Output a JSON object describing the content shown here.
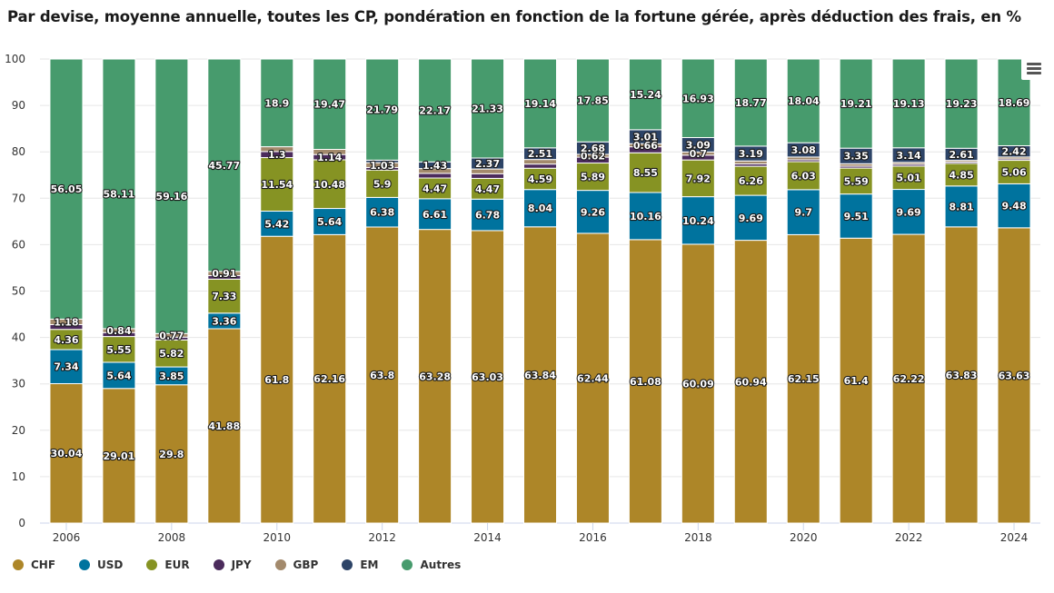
{
  "chart_data": {
    "type": "bar",
    "stacked": true,
    "title": "Par devise, moyenne annuelle, toutes les CP, pondération en fonction de la fortune gérée, après déduction des frais, en %",
    "xlabel": "",
    "ylabel": "",
    "ylim": [
      0,
      100
    ],
    "yticks": [
      0,
      10,
      20,
      30,
      40,
      50,
      60,
      70,
      80,
      90,
      100
    ],
    "grid": true,
    "legend_position": "bottom-left",
    "categories": [
      "2006",
      "2007",
      "2008",
      "2009",
      "2010",
      "2011",
      "2012",
      "2013",
      "2014",
      "2015",
      "2016",
      "2017",
      "2018",
      "2019",
      "2020",
      "2021",
      "2022",
      "2023",
      "2024"
    ],
    "xtick_labels": [
      "2006",
      "",
      "2008",
      "",
      "2010",
      "",
      "2012",
      "",
      "2014",
      "",
      "2016",
      "",
      "2018",
      "",
      "2020",
      "",
      "2022",
      "",
      "2024"
    ],
    "series": [
      {
        "name": "CHF",
        "color": "#AD8628",
        "values": [
          30.04,
          29.01,
          29.8,
          41.88,
          61.8,
          62.16,
          63.8,
          63.28,
          63.03,
          63.84,
          62.44,
          61.08,
          60.09,
          60.94,
          62.15,
          61.4,
          62.22,
          63.83,
          63.63
        ],
        "labeled": [
          1,
          1,
          1,
          1,
          1,
          1,
          1,
          1,
          1,
          1,
          1,
          1,
          1,
          1,
          1,
          1,
          1,
          1,
          1
        ]
      },
      {
        "name": "USD",
        "color": "#00739E",
        "values": [
          7.34,
          5.64,
          3.85,
          3.36,
          5.42,
          5.64,
          6.38,
          6.61,
          6.78,
          8.04,
          9.26,
          10.16,
          10.24,
          9.69,
          9.7,
          9.51,
          9.69,
          8.81,
          9.48
        ],
        "labeled": [
          1,
          1,
          1,
          1,
          1,
          1,
          1,
          1,
          1,
          1,
          1,
          1,
          1,
          1,
          1,
          1,
          1,
          1,
          1
        ]
      },
      {
        "name": "EUR",
        "color": "#869323",
        "values": [
          4.36,
          5.55,
          5.82,
          7.33,
          11.54,
          10.48,
          5.9,
          4.47,
          4.47,
          4.59,
          5.89,
          8.55,
          7.92,
          6.26,
          6.03,
          5.59,
          5.01,
          4.85,
          5.06
        ],
        "labeled": [
          1,
          1,
          1,
          1,
          1,
          1,
          1,
          1,
          1,
          1,
          1,
          1,
          1,
          1,
          1,
          1,
          1,
          1,
          1
        ]
      },
      {
        "name": "JPY",
        "color": "#4B2B5C",
        "values": [
          1.03,
          0.85,
          0.6,
          0.75,
          1.3,
          1.14,
          0.55,
          1.0,
          1.0,
          0.9,
          1.26,
          1.3,
          1.03,
          0.5,
          0.4,
          0.4,
          0.4,
          0.3,
          0.3
        ],
        "labeled": [
          0,
          0,
          0,
          0,
          1,
          1,
          0,
          0,
          0,
          0,
          0,
          0,
          0,
          0,
          0,
          0,
          0,
          0,
          0
        ]
      },
      {
        "name": "GBP",
        "color": "#A38A6C",
        "values": [
          1.18,
          0.84,
          0.77,
          0.91,
          1.04,
          1.11,
          1.03,
          1.04,
          1.02,
          0.98,
          0.62,
          0.66,
          0.7,
          0.65,
          0.6,
          0.54,
          0.41,
          0.37,
          0.42
        ],
        "labeled": [
          1,
          1,
          1,
          1,
          0,
          0,
          1,
          0,
          0,
          0,
          1,
          1,
          1,
          0,
          0,
          0,
          0,
          0,
          0
        ]
      },
      {
        "name": "EM",
        "color": "#2D4467",
        "values": [
          0,
          0,
          0,
          0,
          0,
          0,
          0.55,
          1.43,
          2.37,
          2.51,
          2.68,
          3.01,
          3.09,
          3.19,
          3.08,
          3.35,
          3.14,
          2.61,
          2.42
        ],
        "labeled": [
          0,
          0,
          0,
          0,
          0,
          0,
          0,
          1,
          1,
          1,
          1,
          1,
          1,
          1,
          1,
          1,
          1,
          1,
          1
        ]
      },
      {
        "name": "Autres",
        "color": "#479B6D",
        "values": [
          56.05,
          58.11,
          59.16,
          45.77,
          18.9,
          19.47,
          21.79,
          22.17,
          21.33,
          19.14,
          17.85,
          15.24,
          16.93,
          18.77,
          18.04,
          19.21,
          19.13,
          19.23,
          18.69
        ],
        "labeled": [
          1,
          1,
          1,
          1,
          1,
          1,
          1,
          1,
          1,
          1,
          1,
          1,
          1,
          1,
          1,
          1,
          1,
          1,
          1
        ]
      }
    ]
  },
  "legend": {
    "items": [
      {
        "label": "CHF",
        "color": "#AD8628"
      },
      {
        "label": "USD",
        "color": "#00739E"
      },
      {
        "label": "EUR",
        "color": "#869323"
      },
      {
        "label": "JPY",
        "color": "#4B2B5C"
      },
      {
        "label": "GBP",
        "color": "#A38A6C"
      },
      {
        "label": "EM",
        "color": "#2D4467"
      },
      {
        "label": "Autres",
        "color": "#479B6D"
      }
    ]
  },
  "menu": {
    "icon": "hamburger-menu-icon"
  }
}
